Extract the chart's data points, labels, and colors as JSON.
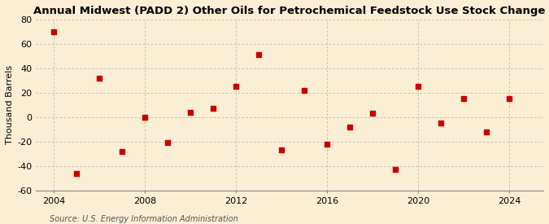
{
  "title": "Annual Midwest (PADD 2) Other Oils for Petrochemical Feedstock Use Stock Change",
  "ylabel": "Thousand Barrels",
  "source": "Source: U.S. Energy Information Administration",
  "background_color": "#faefd4",
  "years": [
    2004,
    2005,
    2006,
    2007,
    2008,
    2009,
    2010,
    2011,
    2012,
    2013,
    2014,
    2015,
    2016,
    2017,
    2018,
    2019,
    2020,
    2021,
    2022,
    2023,
    2024
  ],
  "values": [
    70,
    -46,
    32,
    -28,
    0,
    -21,
    4,
    7,
    25,
    51,
    -27,
    22,
    -22,
    -8,
    3,
    -43,
    25,
    -5,
    15,
    -12,
    15
  ],
  "marker_color": "#cc0000",
  "marker_size": 5,
  "xlim": [
    2003.2,
    2025.5
  ],
  "ylim": [
    -60,
    80
  ],
  "yticks": [
    -60,
    -40,
    -20,
    0,
    20,
    40,
    60,
    80
  ],
  "xticks": [
    2004,
    2008,
    2012,
    2016,
    2020,
    2024
  ],
  "grid_color": "#b0b0b0",
  "title_fontsize": 9.5,
  "label_fontsize": 8,
  "tick_fontsize": 8,
  "source_fontsize": 7
}
